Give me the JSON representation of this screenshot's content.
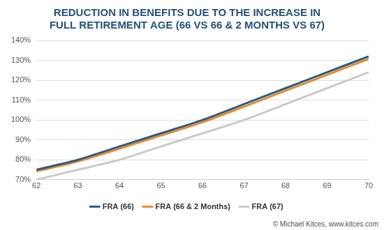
{
  "chart_data": {
    "type": "line",
    "title": [
      "REDUCTION IN BENEFITS DUE TO THE INCREASE IN",
      "FULL RETIREMENT AGE (66 VS 66 & 2 MONTHS VS 67)"
    ],
    "annotation": "© Michael Kitces, www.kitces.com",
    "x": [
      62,
      63,
      64,
      65,
      66,
      67,
      68,
      69,
      70
    ],
    "series": [
      {
        "name": "FRA (66)",
        "color": "#2b5b84",
        "values": [
          75,
          80,
          86.7,
          93.3,
          100,
          108,
          116,
          124,
          132
        ]
      },
      {
        "name": "FRA (66 & 2 Months)",
        "color": "#e8892b",
        "values": [
          74.2,
          79.2,
          85.6,
          92.2,
          98.9,
          106.7,
          114.7,
          122.7,
          130.7
        ]
      },
      {
        "name": "FRA (67)",
        "color": "#c9c9c9",
        "values": [
          70,
          75,
          80,
          86.7,
          93.3,
          100,
          108,
          116,
          124
        ]
      }
    ],
    "xlim": [
      62,
      70
    ],
    "xticks": [
      62,
      63,
      64,
      65,
      66,
      67,
      68,
      69,
      70
    ],
    "ylim": [
      70,
      140
    ],
    "yticks": [
      {
        "value": 70,
        "label": "70%"
      },
      {
        "value": 80,
        "label": "80%"
      },
      {
        "value": 90,
        "label": "90%"
      },
      {
        "value": 100,
        "label": "100%"
      },
      {
        "value": 110,
        "label": "110%"
      },
      {
        "value": 120,
        "label": "120%"
      },
      {
        "value": 130,
        "label": "130%"
      },
      {
        "value": 140,
        "label": "140%"
      }
    ],
    "grid": "y",
    "legend": "bottom"
  }
}
